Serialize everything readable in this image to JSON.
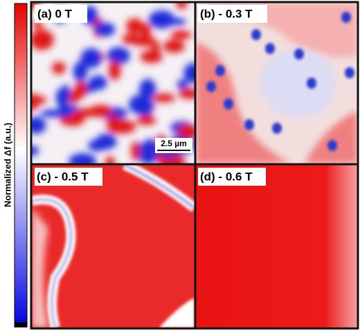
{
  "colorbar": {
    "label": "Normalized Δf (a.u.)"
  },
  "panels": [
    {
      "label": "(a) 0 T"
    },
    {
      "label": "(b) - 0.3 T"
    },
    {
      "label": "(c) - 0.5 T"
    },
    {
      "label": "(d) - 0.6 T"
    }
  ],
  "scale_bar": {
    "label": "2.5 µm"
  }
}
